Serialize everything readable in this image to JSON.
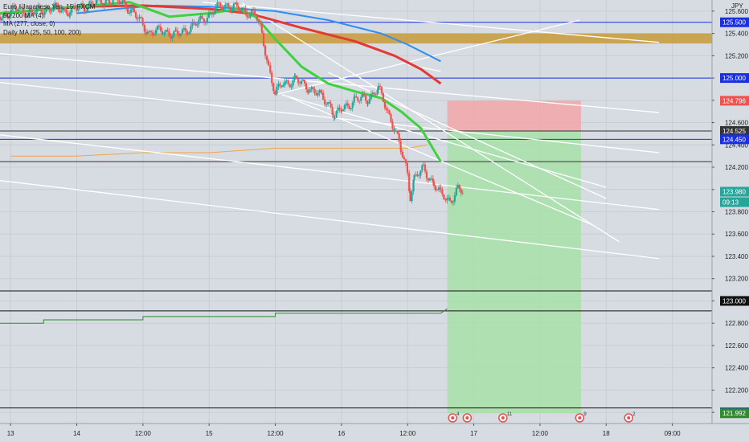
{
  "legend": {
    "symbol": "Euro / Japanese Yen, 15, FXCM",
    "ind1": "50 200 MA (4)",
    "ind2": "MA (277, close, 0)",
    "ind3": "Daily MA (25, 50, 100, 200)"
  },
  "currency": "JPY",
  "colors": {
    "background": "#d7dbe2",
    "up_candle": "#26a69a",
    "down_candle": "#ef5350",
    "ma_green": "#3fd23f",
    "ma_red": "#e53935",
    "ma_blue": "#2f8ff0",
    "zone_fill": "#c89a3a",
    "stop_fill": "#f3a6a8",
    "target_fill": "#a7e0a9",
    "blue_level": "#1a2fe0",
    "orange_line": "#f2a541",
    "dark_green_line": "#2e8b2e"
  },
  "chart_data": {
    "type": "candlestick",
    "y_axis": {
      "min": 121.9,
      "max": 125.7,
      "ticks": [
        "125.600",
        "125.400",
        "125.200",
        "125.000",
        "124.800",
        "124.600",
        "124.400",
        "124.200",
        "124.000",
        "123.800",
        "123.600",
        "123.400",
        "123.200",
        "123.000",
        "122.800",
        "122.600",
        "122.400",
        "122.200",
        "122.000"
      ]
    },
    "x_axis": {
      "labels": [
        {
          "t": 0.0,
          "label": "13"
        },
        {
          "t": 0.5,
          "label": "14"
        },
        {
          "t": 1.0,
          "label": "12:00"
        },
        {
          "t": 1.5,
          "label": "15"
        },
        {
          "t": 2.0,
          "label": "12:00"
        },
        {
          "t": 2.5,
          "label": "16"
        },
        {
          "t": 3.0,
          "label": "12:00"
        },
        {
          "t": 3.5,
          "label": "17"
        },
        {
          "t": 4.0,
          "label": "12:00"
        },
        {
          "t": 4.5,
          "label": "18"
        },
        {
          "t": 5.0,
          "label": "09:00"
        }
      ],
      "t_range": [
        -0.08,
        5.3
      ]
    },
    "price_tags": [
      {
        "value": "125.500",
        "bg": "#1a2fe0"
      },
      {
        "value": "125.000",
        "bg": "#1a2fe0"
      },
      {
        "value": "124.796",
        "bg": "#ef5350"
      },
      {
        "value": "124.525",
        "bg": "#333333"
      },
      {
        "value": "124.450",
        "bg": "#1a2fe0"
      },
      {
        "value": "123.980",
        "bg": "#26a69a"
      },
      {
        "value": "09:13",
        "bg": "#26a69a"
      },
      {
        "value": "123.000",
        "bg": "#111111"
      },
      {
        "value": "122.000",
        "bg": "#1a2fe0"
      },
      {
        "value": "121.992",
        "bg": "#2e8b2e"
      }
    ],
    "close_price": [
      [
        -0.08,
        125.55
      ],
      [
        0.05,
        125.62
      ],
      [
        0.15,
        125.58
      ],
      [
        0.3,
        125.63
      ],
      [
        0.45,
        125.6
      ],
      [
        0.6,
        125.66
      ],
      [
        0.75,
        125.7
      ],
      [
        0.85,
        125.68
      ],
      [
        0.95,
        125.55
      ],
      [
        1.0,
        125.48
      ],
      [
        1.05,
        125.4
      ],
      [
        1.15,
        125.43
      ],
      [
        1.25,
        125.38
      ],
      [
        1.35,
        125.45
      ],
      [
        1.45,
        125.52
      ],
      [
        1.55,
        125.62
      ],
      [
        1.65,
        125.66
      ],
      [
        1.75,
        125.6
      ],
      [
        1.85,
        125.58
      ],
      [
        1.9,
        125.38
      ],
      [
        1.95,
        125.1
      ],
      [
        2.0,
        124.85
      ],
      [
        2.05,
        124.95
      ],
      [
        2.15,
        124.98
      ],
      [
        2.25,
        124.92
      ],
      [
        2.35,
        124.83
      ],
      [
        2.42,
        124.75
      ],
      [
        2.45,
        124.65
      ],
      [
        2.5,
        124.72
      ],
      [
        2.6,
        124.8
      ],
      [
        2.7,
        124.82
      ],
      [
        2.78,
        124.9
      ],
      [
        2.85,
        124.7
      ],
      [
        2.9,
        124.55
      ],
      [
        2.95,
        124.35
      ],
      [
        3.0,
        124.15
      ],
      [
        3.02,
        123.95
      ],
      [
        3.05,
        124.1
      ],
      [
        3.12,
        124.18
      ],
      [
        3.2,
        124.05
      ],
      [
        3.25,
        123.95
      ],
      [
        3.32,
        123.9
      ],
      [
        3.38,
        124.0
      ],
      [
        3.42,
        123.97
      ]
    ],
    "ma_green": [
      [
        -0.08,
        125.58
      ],
      [
        0.5,
        125.64
      ],
      [
        0.9,
        125.68
      ],
      [
        1.2,
        125.55
      ],
      [
        1.5,
        125.58
      ],
      [
        1.72,
        125.62
      ],
      [
        1.85,
        125.55
      ],
      [
        2.0,
        125.35
      ],
      [
        2.2,
        125.1
      ],
      [
        2.4,
        124.95
      ],
      [
        2.6,
        124.88
      ],
      [
        2.8,
        124.82
      ],
      [
        2.95,
        124.7
      ],
      [
        3.1,
        124.55
      ],
      [
        3.25,
        124.25
      ]
    ],
    "ma_red": [
      [
        -0.08,
        125.58
      ],
      [
        0.5,
        125.64
      ],
      [
        1.0,
        125.65
      ],
      [
        1.5,
        125.62
      ],
      [
        1.8,
        125.58
      ],
      [
        2.2,
        125.45
      ],
      [
        2.6,
        125.33
      ],
      [
        2.9,
        125.2
      ],
      [
        3.1,
        125.08
      ],
      [
        3.25,
        124.95
      ]
    ],
    "ma_blue": [
      [
        0.5,
        125.58
      ],
      [
        0.8,
        125.62
      ],
      [
        1.1,
        125.65
      ],
      [
        1.5,
        125.64
      ],
      [
        2.0,
        125.6
      ],
      [
        2.4,
        125.52
      ],
      [
        2.8,
        125.4
      ],
      [
        3.0,
        125.3
      ],
      [
        3.25,
        125.15
      ]
    ],
    "resistance_zone": [
      125.31,
      125.4
    ],
    "horizontal_levels": [
      {
        "value": 125.5,
        "color": "#1a2fe0"
      },
      {
        "value": 125.0,
        "color": "#1a2fe0"
      },
      {
        "value": 124.525,
        "color": "#333333"
      },
      {
        "value": 124.45,
        "color": "#1a2fe0"
      },
      {
        "value": 124.25,
        "color": "#333333"
      },
      {
        "value": 123.09,
        "color": "#111111"
      },
      {
        "value": 122.91,
        "color": "#111111"
      },
      {
        "value": 122.04,
        "color": "#111111"
      }
    ],
    "trend_lines": [
      [
        [
          1.45,
          125.68
        ],
        [
          4.9,
          125.32
        ]
      ],
      [
        [
          -0.08,
          125.22
        ],
        [
          4.9,
          124.69
        ]
      ],
      [
        [
          -0.08,
          124.96
        ],
        [
          4.9,
          124.33
        ]
      ],
      [
        [
          -0.08,
          124.49
        ],
        [
          4.9,
          123.82
        ]
      ],
      [
        [
          -0.08,
          124.08
        ],
        [
          4.9,
          123.38
        ]
      ],
      [
        [
          2.0,
          124.85
        ],
        [
          4.3,
          125.52
        ]
      ],
      [
        [
          1.75,
          125.67
        ],
        [
          4.6,
          123.53
        ]
      ],
      [
        [
          2.05,
          124.85
        ],
        [
          4.5,
          124.02
        ]
      ],
      [
        [
          2.1,
          124.83
        ],
        [
          4.4,
          123.68
        ]
      ],
      [
        [
          2.4,
          125.05
        ],
        [
          4.5,
          123.92
        ]
      ],
      [
        [
          3.0,
          125.12
        ],
        [
          3.25,
          125.06
        ]
      ]
    ],
    "position": {
      "t_start": 3.3,
      "t_end": 4.31,
      "entry": 124.525,
      "stop": 124.796,
      "target": 121.992
    },
    "orange_line": [
      [
        0.0,
        124.3
      ],
      [
        0.5,
        124.3
      ],
      [
        1.0,
        124.33
      ],
      [
        1.5,
        124.33
      ],
      [
        2.0,
        124.37
      ],
      [
        2.5,
        124.37
      ],
      [
        3.0,
        124.37
      ],
      [
        3.15,
        124.4
      ]
    ],
    "dark_green_line": [
      [
        -0.08,
        122.8
      ],
      [
        0.25,
        122.8
      ],
      [
        0.25,
        122.83
      ],
      [
        1.0,
        122.83
      ],
      [
        1.0,
        122.86
      ],
      [
        2.0,
        122.86
      ],
      [
        2.0,
        122.89
      ],
      [
        3.25,
        122.89
      ],
      [
        3.3,
        122.93
      ]
    ],
    "events": [
      {
        "t": 3.34,
        "label": "4"
      },
      {
        "t": 3.45,
        "label": ""
      },
      {
        "t": 3.72,
        "label": "11"
      },
      {
        "t": 4.3,
        "label": "9"
      },
      {
        "t": 4.67,
        "label": "2"
      }
    ]
  }
}
